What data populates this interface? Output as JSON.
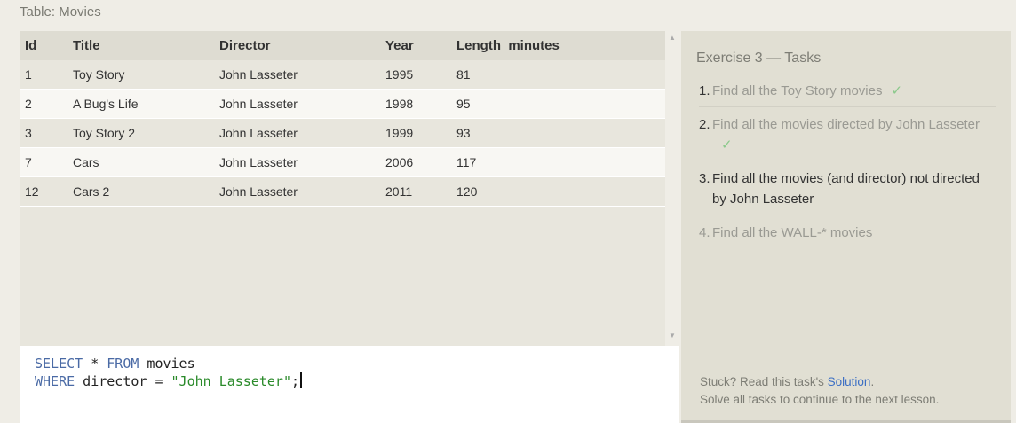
{
  "table_caption": "Table: Movies",
  "results": {
    "columns": [
      "Id",
      "Title",
      "Director",
      "Year",
      "Length_minutes"
    ],
    "rows": [
      [
        "1",
        "Toy Story",
        "John Lasseter",
        "1995",
        "81"
      ],
      [
        "2",
        "A Bug's Life",
        "John Lasseter",
        "1998",
        "95"
      ],
      [
        "3",
        "Toy Story 2",
        "John Lasseter",
        "1999",
        "93"
      ],
      [
        "7",
        "Cars",
        "John Lasseter",
        "2006",
        "117"
      ],
      [
        "12",
        "Cars 2",
        "John Lasseter",
        "2011",
        "120"
      ]
    ]
  },
  "editor": {
    "line1": {
      "kw1": "SELECT",
      "mid": " * ",
      "kw2": "FROM",
      "rest": " movies"
    },
    "line2": {
      "kw1": "WHERE",
      "mid": " director = ",
      "str": "\"John Lasseter\"",
      "end": ";"
    }
  },
  "tasks": {
    "title": "Exercise 3 — Tasks",
    "items": [
      {
        "num": "1.",
        "text": "Find all the Toy Story movies",
        "status": "done",
        "check": "✓"
      },
      {
        "num": "2.",
        "text": "Find all the movies directed by John Lasseter",
        "status": "done",
        "check": "✓"
      },
      {
        "num": "3.",
        "text": "Find all the movies (and director) not directed by John Lasseter",
        "status": "current",
        "check": ""
      },
      {
        "num": "4.",
        "text": "Find all the WALL-* movies",
        "status": "todo",
        "check": ""
      }
    ],
    "stuck_prefix": "Stuck? Read this task's ",
    "solution_link": "Solution",
    "stuck_suffix": ".",
    "footer_note": "Solve all tasks to continue to the next lesson."
  },
  "colors": {
    "keyword": "#4a6aa5",
    "string": "#2a8a2a",
    "check": "#8bc98b",
    "link": "#3c6fc4"
  }
}
